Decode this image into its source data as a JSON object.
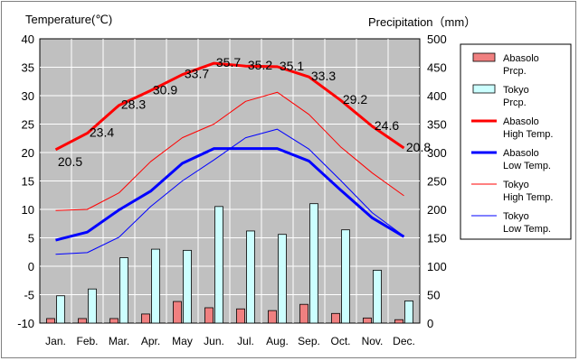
{
  "chart_data": {
    "type": "bar+line",
    "left_axis_title": "Temperature(℃)",
    "right_axis_title": "Precipitation（mm）",
    "categories": [
      "Jan.",
      "Feb.",
      "Mar.",
      "Apr.",
      "May",
      "Jun.",
      "Jul.",
      "Aug.",
      "Sep.",
      "Oct.",
      "Nov.",
      "Dec."
    ],
    "y_left": {
      "min": -10,
      "max": 40,
      "ticks": [
        -10,
        -5,
        0,
        5,
        10,
        15,
        20,
        25,
        30,
        35,
        40
      ]
    },
    "y_right": {
      "min": 0,
      "max": 500,
      "ticks": [
        0,
        50,
        100,
        150,
        200,
        250,
        300,
        350,
        400,
        450,
        500
      ]
    },
    "bars": [
      {
        "name": "Abasolo Prcp.",
        "legend": [
          "Abasolo",
          "Prcp."
        ],
        "color": "#F08080",
        "values": [
          8,
          8,
          8,
          16,
          38,
          27,
          25,
          22,
          33,
          17,
          9,
          6
        ]
      },
      {
        "name": "Tokyo Prcp.",
        "legend": [
          "Tokyo",
          "Prcp."
        ],
        "color": "#CCFFFF",
        "values": [
          48,
          60,
          115,
          130,
          128,
          205,
          162,
          156,
          210,
          164,
          93,
          39
        ]
      }
    ],
    "lines": [
      {
        "name": "Abasolo High Temp.",
        "legend": [
          "Abasolo",
          "High Temp."
        ],
        "color": "#FF0000",
        "width": 3,
        "values": [
          20.5,
          23.4,
          28.3,
          30.9,
          33.7,
          35.7,
          35.2,
          35.1,
          33.3,
          29.2,
          24.6,
          20.8
        ],
        "labels": [
          "20.5",
          "23.4",
          "28.3",
          "30.9",
          "33.7",
          "35.7",
          "35.2",
          "35.1",
          "33.3",
          "29.2",
          "24.6",
          "20.8"
        ]
      },
      {
        "name": "Abasolo Low Temp.",
        "legend": [
          "Abasolo",
          "Low Temp."
        ],
        "color": "#0000FF",
        "width": 3,
        "values": [
          4.6,
          6.0,
          9.9,
          13.2,
          18.1,
          20.7,
          20.7,
          20.7,
          18.5,
          13.4,
          8.5,
          5.2
        ]
      },
      {
        "name": "Tokyo High Temp.",
        "legend": [
          "Tokyo",
          "High Temp."
        ],
        "color": "#FF0000",
        "width": 1,
        "values": [
          9.8,
          10.0,
          12.9,
          18.4,
          22.6,
          25.0,
          29.0,
          30.6,
          26.7,
          21.0,
          16.4,
          12.4
        ]
      },
      {
        "name": "Tokyo Low Temp.",
        "legend": [
          "Tokyo",
          "Low Temp."
        ],
        "color": "#0000FF",
        "width": 1,
        "values": [
          2.1,
          2.4,
          5.1,
          10.5,
          15.0,
          18.7,
          22.6,
          24.1,
          20.6,
          15.1,
          9.4,
          5.3
        ]
      }
    ],
    "plot_background": "#C0C0C0",
    "grid": true,
    "legend_position": "right"
  }
}
